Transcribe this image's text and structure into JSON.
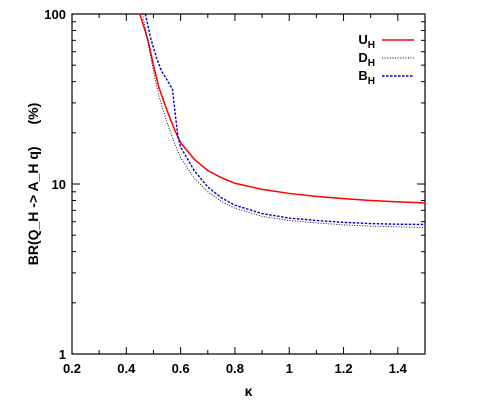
{
  "chart_data": {
    "type": "line",
    "xlabel": "κ",
    "ylabel": "BR(Q_H -> A_H q)",
    "ylabel_unit": "(%)",
    "xlim": [
      0.2,
      1.5
    ],
    "ylim": [
      1,
      100
    ],
    "yscale": "log",
    "grid": false,
    "legend_position": "top-right",
    "x_ticks": [
      0.2,
      0.4,
      0.6,
      0.8,
      1.0,
      1.2,
      1.4
    ],
    "x_tick_labels": [
      "0.2",
      "0.4",
      "0.6",
      "0.8",
      "1",
      "1.2",
      "1.4"
    ],
    "y_ticks": [
      1,
      10,
      100
    ],
    "y_tick_labels": [
      "1",
      "10",
      "100"
    ],
    "series": [
      {
        "name": "U_H",
        "label_main": "U",
        "label_sub": "H",
        "color": "#ff0000",
        "style": "solid",
        "points": [
          [
            0.45,
            100
          ],
          [
            0.48,
            70
          ],
          [
            0.5,
            50
          ],
          [
            0.52,
            37
          ],
          [
            0.55,
            27
          ],
          [
            0.58,
            20.5
          ],
          [
            0.6,
            17.5
          ],
          [
            0.65,
            14
          ],
          [
            0.7,
            12
          ],
          [
            0.75,
            10.9
          ],
          [
            0.8,
            10.1
          ],
          [
            0.9,
            9.3
          ],
          [
            1.0,
            8.8
          ],
          [
            1.1,
            8.45
          ],
          [
            1.2,
            8.2
          ],
          [
            1.3,
            8.0
          ],
          [
            1.4,
            7.85
          ],
          [
            1.5,
            7.75
          ]
        ]
      },
      {
        "name": "D_H",
        "label_main": "D",
        "label_sub": "H",
        "color": "#000000",
        "style": "dotted",
        "points": [
          [
            0.46,
            100
          ],
          [
            0.48,
            68
          ],
          [
            0.5,
            46
          ],
          [
            0.52,
            33
          ],
          [
            0.55,
            23
          ],
          [
            0.58,
            17
          ],
          [
            0.6,
            14.3
          ],
          [
            0.65,
            10.8
          ],
          [
            0.7,
            9.0
          ],
          [
            0.75,
            7.9
          ],
          [
            0.8,
            7.2
          ],
          [
            0.9,
            6.45
          ],
          [
            1.0,
            6.1
          ],
          [
            1.1,
            5.9
          ],
          [
            1.2,
            5.75
          ],
          [
            1.3,
            5.65
          ],
          [
            1.4,
            5.6
          ],
          [
            1.5,
            5.55
          ]
        ]
      },
      {
        "name": "B_H",
        "label_main": "B",
        "label_sub": "H",
        "color": "#0000cc",
        "style": "dashed",
        "points": [
          [
            0.47,
            100
          ],
          [
            0.49,
            72
          ],
          [
            0.51,
            56
          ],
          [
            0.53,
            46
          ],
          [
            0.55,
            41
          ],
          [
            0.57,
            36
          ],
          [
            0.58,
            26
          ],
          [
            0.59,
            19
          ],
          [
            0.6,
            16.5
          ],
          [
            0.65,
            12
          ],
          [
            0.7,
            9.6
          ],
          [
            0.75,
            8.3
          ],
          [
            0.8,
            7.5
          ],
          [
            0.9,
            6.7
          ],
          [
            1.0,
            6.3
          ],
          [
            1.1,
            6.1
          ],
          [
            1.2,
            5.95
          ],
          [
            1.3,
            5.85
          ],
          [
            1.4,
            5.8
          ],
          [
            1.5,
            5.78
          ]
        ]
      }
    ]
  }
}
